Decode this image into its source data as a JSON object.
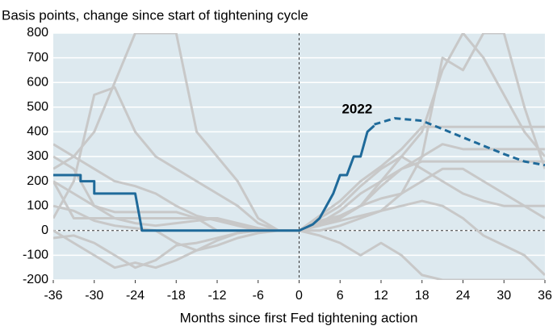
{
  "chart_data": {
    "type": "line",
    "subtitle": "Basis points, change since start of tightening cycle",
    "xlabel": "Months since first Fed tightening action",
    "annotation": {
      "text": "2022",
      "x": 8.5,
      "y": 490
    },
    "xlim": [
      -36,
      36
    ],
    "xticks": [
      -36,
      -30,
      -24,
      -18,
      -12,
      -6,
      0,
      6,
      12,
      18,
      24,
      30,
      36
    ],
    "ylim": [
      -200,
      800
    ],
    "yticks": [
      -200,
      -100,
      0,
      100,
      200,
      300,
      400,
      500,
      600,
      700,
      800
    ],
    "grid": true,
    "background": "#dde9ef",
    "series": [
      {
        "color": "#c8c8c8",
        "x": [
          -36,
          -33,
          -30,
          -27,
          -24,
          -21,
          -18,
          -15,
          -12,
          -9,
          -6,
          -3,
          0,
          3,
          6,
          9,
          12,
          15,
          18,
          21,
          24,
          27,
          30,
          33,
          36
        ],
        "values": [
          350,
          300,
          250,
          200,
          180,
          150,
          100,
          60,
          40,
          20,
          5,
          0,
          0,
          50,
          100,
          180,
          250,
          300,
          400,
          650,
          800,
          700,
          550,
          400,
          300
        ]
      },
      {
        "color": "#c8c8c8",
        "x": [
          -36,
          -33,
          -30,
          -27,
          -24,
          -21,
          -18,
          -15,
          -12,
          -9,
          -6,
          -3,
          0,
          3,
          6,
          9,
          12,
          15,
          18,
          21,
          24,
          27,
          30,
          33,
          36
        ],
        "values": [
          50,
          200,
          550,
          580,
          400,
          300,
          250,
          200,
          150,
          100,
          30,
          0,
          0,
          30,
          80,
          150,
          200,
          250,
          300,
          350,
          330,
          330,
          330,
          330,
          330
        ]
      },
      {
        "color": "#c8c8c8",
        "x": [
          -36,
          -33,
          -30,
          -27,
          -24,
          -21,
          -18,
          -15,
          -12,
          -9,
          -6,
          -3,
          0,
          3,
          6,
          9,
          12,
          15,
          18,
          21,
          24,
          27,
          30,
          33,
          36
        ],
        "values": [
          300,
          250,
          100,
          75,
          75,
          75,
          75,
          50,
          0,
          0,
          0,
          0,
          0,
          20,
          50,
          100,
          180,
          250,
          280,
          280,
          280,
          280,
          280,
          280,
          280
        ]
      },
      {
        "color": "#c8c8c8",
        "x": [
          -36,
          -33,
          -30,
          -27,
          -24,
          -21,
          -18,
          -15,
          -12,
          -9,
          -6,
          -3,
          0,
          3,
          6,
          9,
          12,
          15,
          18,
          21,
          24,
          27,
          30,
          33,
          36
        ],
        "values": [
          -30,
          -20,
          -50,
          -100,
          -150,
          -120,
          -60,
          -50,
          -30,
          -10,
          0,
          0,
          0,
          40,
          60,
          100,
          130,
          150,
          200,
          250,
          250,
          200,
          150,
          100,
          50
        ]
      },
      {
        "color": "#c8c8c8",
        "x": [
          -36,
          -33,
          -30,
          -27,
          -24,
          -21,
          -18,
          -15,
          -12,
          -9,
          -6,
          -3,
          0,
          3,
          6,
          9,
          12,
          15,
          18,
          21,
          24,
          27,
          30,
          33,
          36
        ],
        "values": [
          200,
          150,
          100,
          50,
          30,
          20,
          30,
          40,
          50,
          30,
          10,
          0,
          0,
          60,
          120,
          200,
          260,
          330,
          420,
          420,
          420,
          420,
          420,
          420,
          420
        ]
      },
      {
        "color": "#c8c8c8",
        "x": [
          -36,
          -33,
          -30,
          -27,
          -24,
          -21,
          -18,
          -15,
          -12,
          -9,
          -6,
          -3,
          0,
          3,
          6,
          9,
          12,
          15,
          18,
          21,
          24,
          27,
          30,
          33,
          36
        ],
        "values": [
          100,
          80,
          40,
          20,
          10,
          0,
          -50,
          -80,
          -60,
          -30,
          -10,
          0,
          0,
          20,
          40,
          60,
          80,
          100,
          120,
          100,
          50,
          -20,
          -60,
          -100,
          -180
        ]
      },
      {
        "color": "#c8c8c8",
        "x": [
          -36,
          -33,
          -30,
          -27,
          -24,
          -21,
          -18,
          -15,
          -12,
          -9,
          -6,
          -3,
          0,
          3,
          6,
          9,
          12,
          15,
          18,
          21,
          24,
          27,
          30,
          33,
          36
        ],
        "values": [
          250,
          300,
          400,
          600,
          800,
          800,
          800,
          400,
          300,
          200,
          50,
          0,
          0,
          0,
          20,
          50,
          80,
          150,
          300,
          700,
          650,
          800,
          800,
          500,
          250
        ]
      },
      {
        "color": "#c8c8c8",
        "x": [
          -36,
          -33,
          -30,
          -27,
          -24,
          -21,
          -18,
          -15,
          -12,
          -9,
          -6,
          -3,
          0,
          3,
          6,
          9,
          12,
          15,
          18,
          21,
          24,
          27,
          30,
          33,
          36
        ],
        "values": [
          0,
          -50,
          -100,
          -150,
          -130,
          -150,
          -120,
          -80,
          -40,
          -10,
          0,
          0,
          0,
          -20,
          -50,
          -100,
          -50,
          -100,
          -180,
          -200,
          -200,
          -200,
          -200,
          -200,
          -200
        ]
      },
      {
        "color": "#c8c8c8",
        "x": [
          -36,
          -33,
          -30,
          -27,
          -24,
          -21,
          -18,
          -15,
          -12,
          -9,
          -6,
          -3,
          0,
          3,
          6,
          9,
          12,
          15,
          18,
          21,
          24,
          27,
          30,
          33,
          36
        ],
        "values": [
          200,
          50,
          50,
          50,
          50,
          50,
          50,
          50,
          50,
          20,
          0,
          0,
          0,
          30,
          60,
          100,
          200,
          300,
          250,
          200,
          150,
          120,
          100,
          100,
          100
        ]
      },
      {
        "color": "#1f6a9a",
        "x": [
          -36,
          -32,
          -32,
          -30,
          -30,
          -24,
          -23,
          0,
          2,
          3,
          5,
          6,
          7,
          8,
          9,
          10,
          11
        ],
        "values": [
          225,
          225,
          200,
          200,
          150,
          150,
          0,
          0,
          25,
          50,
          150,
          225,
          225,
          300,
          300,
          400,
          425
        ]
      },
      {
        "color": "#1f6a9a",
        "dashed": true,
        "x": [
          11,
          14,
          18,
          22,
          26,
          30,
          33,
          36
        ],
        "values": [
          430,
          455,
          445,
          400,
          355,
          310,
          280,
          265
        ]
      }
    ]
  }
}
